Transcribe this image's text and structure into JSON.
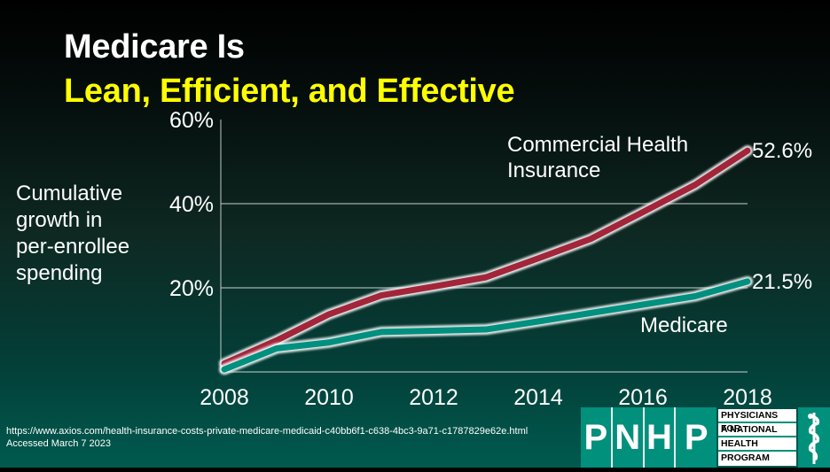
{
  "title": {
    "line1": "Medicare Is",
    "line2": "Lean, Efficient, and Effective"
  },
  "y_axis_label": [
    "Cumulative",
    "growth in",
    "per-enrollee",
    "spending"
  ],
  "source": {
    "url": "https://www.axios.com/health-insurance-costs-private-medicare-medicaid-c40bb6f1-c638-4bc3-9a71-c1787829e62e.html",
    "accessed": "Accessed March 7 2023"
  },
  "logo": {
    "letters": [
      "P",
      "N",
      "H",
      "P"
    ],
    "name_lines": [
      "PHYSICIANS FOR",
      "A NATIONAL",
      "HEALTH",
      "PROGRAM"
    ],
    "icon": "rod-of-asclepius-icon"
  },
  "colors": {
    "commercial": "#a3253a",
    "medicare": "#00907f",
    "title_accent": "#ffff00"
  },
  "chart_data": {
    "type": "line",
    "title": "Medicare Is Lean, Efficient, and Effective",
    "xlabel": "",
    "ylabel": "Cumulative growth in per-enrollee spending",
    "x": [
      2008,
      2009,
      2010,
      2011,
      2012,
      2013,
      2014,
      2015,
      2016,
      2017,
      2018
    ],
    "x_ticks": [
      "2008",
      "2010",
      "2012",
      "2014",
      "2016",
      "2018"
    ],
    "x_tick_values": [
      2008,
      2010,
      2012,
      2014,
      2016,
      2018
    ],
    "y_ticks": [
      "20%",
      "40%",
      "60%"
    ],
    "y_tick_values": [
      20,
      40,
      60
    ],
    "ylim": [
      0,
      60
    ],
    "xlim": [
      2008,
      2018
    ],
    "grid": true,
    "series": [
      {
        "name": "Commercial Health Insurance",
        "label_lines": [
          "Commercial Health",
          "Insurance"
        ],
        "end_label": "52.6%",
        "values": [
          2.0,
          7.5,
          13.7,
          18.2,
          20.3,
          22.5,
          27.0,
          31.6,
          38.0,
          44.5,
          52.6
        ]
      },
      {
        "name": "Medicare",
        "label_lines": [
          "Medicare"
        ],
        "end_label": "21.5%",
        "values": [
          0.6,
          5.6,
          7.0,
          9.5,
          9.8,
          10.1,
          12.0,
          14.0,
          16.0,
          18.0,
          21.5
        ]
      }
    ]
  }
}
